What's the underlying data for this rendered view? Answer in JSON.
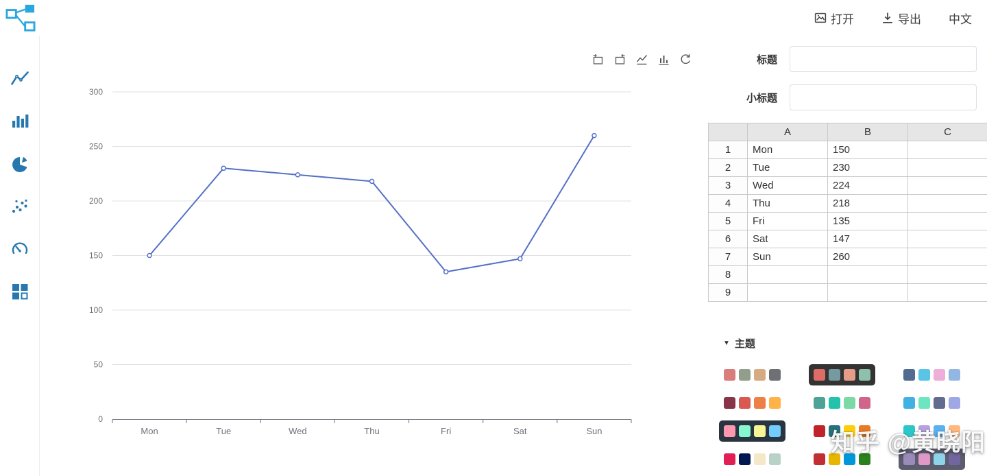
{
  "topbar": {
    "open_label": "打开",
    "export_label": "导出",
    "lang_label": "中文"
  },
  "toolbox_icons": [
    "zoom-select-icon",
    "zoom-reset-icon",
    "switch-line-icon",
    "switch-bar-icon",
    "restore-icon"
  ],
  "sidebar_items": [
    "line-chart",
    "bar-chart",
    "pie-chart",
    "scatter-chart",
    "gauge-chart",
    "grid-chart"
  ],
  "panel": {
    "title_label": "标题",
    "title_value": "",
    "subtitle_label": "小标题",
    "subtitle_value": "",
    "table": {
      "columns": [
        "",
        "A",
        "B",
        "C"
      ],
      "rows": [
        {
          "n": "1",
          "a": "Mon",
          "b": "150",
          "c": ""
        },
        {
          "n": "2",
          "a": "Tue",
          "b": "230",
          "c": ""
        },
        {
          "n": "3",
          "a": "Wed",
          "b": "224",
          "c": ""
        },
        {
          "n": "4",
          "a": "Thu",
          "b": "218",
          "c": ""
        },
        {
          "n": "5",
          "a": "Fri",
          "b": "135",
          "c": ""
        },
        {
          "n": "6",
          "a": "Sat",
          "b": "147",
          "c": ""
        },
        {
          "n": "7",
          "a": "Sun",
          "b": "260",
          "c": ""
        },
        {
          "n": "8",
          "a": "",
          "b": "",
          "c": ""
        },
        {
          "n": "9",
          "a": "",
          "b": "",
          "c": ""
        }
      ]
    },
    "theme": {
      "header": "主题",
      "palettes": [
        {
          "name": "vintage",
          "bg": "",
          "colors": [
            "#d87c7c",
            "#919e8b",
            "#d7ab82",
            "#6e7074"
          ]
        },
        {
          "name": "dark",
          "bg": "#333333",
          "colors": [
            "#dd6b66",
            "#759aa0",
            "#e69d87",
            "#8dc1a9"
          ]
        },
        {
          "name": "westeros",
          "bg": "",
          "colors": [
            "#516b91",
            "#59c4e6",
            "#edafda",
            "#93b7e3"
          ]
        },
        {
          "name": "essos",
          "bg": "",
          "colors": [
            "#893448",
            "#d95850",
            "#eb8146",
            "#ffb248"
          ]
        },
        {
          "name": "wonderland",
          "bg": "",
          "colors": [
            "#4ea397",
            "#22c3aa",
            "#7bd9a5",
            "#d0648a"
          ]
        },
        {
          "name": "walden",
          "bg": "",
          "colors": [
            "#3fb1e3",
            "#6be6c1",
            "#626c91",
            "#a0a7e6"
          ]
        },
        {
          "name": "chalk",
          "bg": "#293441",
          "colors": [
            "#fc97af",
            "#87f7cf",
            "#f7f494",
            "#72ccff"
          ]
        },
        {
          "name": "infographic",
          "bg": "",
          "colors": [
            "#c1232b",
            "#27727b",
            "#fcce10",
            "#e87c25"
          ]
        },
        {
          "name": "macarons",
          "bg": "",
          "colors": [
            "#2ec7c9",
            "#b6a2de",
            "#5ab1ef",
            "#ffb980"
          ]
        },
        {
          "name": "roma",
          "bg": "",
          "colors": [
            "#e01f54",
            "#001852",
            "#f5e8c8",
            "#b8d2c7"
          ]
        },
        {
          "name": "shine",
          "bg": "",
          "colors": [
            "#c12e34",
            "#e6b600",
            "#0098d9",
            "#2b821d"
          ]
        },
        {
          "name": "purple-passion",
          "bg": "#5b5c6e",
          "colors": [
            "#9b8bba",
            "#e098c7",
            "#8fd3e8",
            "#71669e"
          ]
        }
      ]
    }
  },
  "chart_data": {
    "type": "line",
    "categories": [
      "Mon",
      "Tue",
      "Wed",
      "Thu",
      "Fri",
      "Sat",
      "Sun"
    ],
    "series": [
      {
        "name": "",
        "values": [
          150,
          230,
          224,
          218,
          135,
          147,
          260
        ]
      }
    ],
    "title": "",
    "xlabel": "",
    "ylabel": "",
    "ylim": [
      0,
      300
    ],
    "ytick_interval": 50,
    "grid": true,
    "legend": false,
    "line_color": "#5470c6",
    "colors": {
      "axis_label": "#6e7079",
      "gridline": "#e0e0e6",
      "axis_line": "#6e7079"
    }
  },
  "watermark": "知乎 @黄晓阳"
}
